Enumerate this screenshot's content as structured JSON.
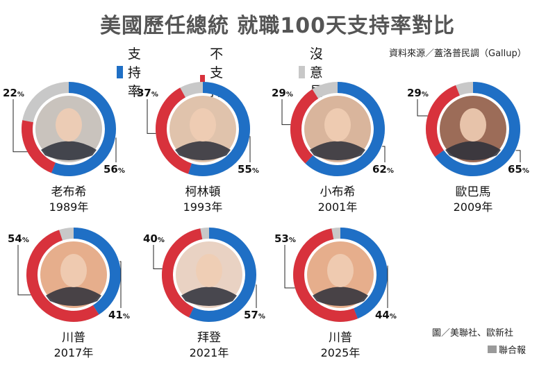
{
  "title": "美國歷任總統 就職100天支持率對比",
  "legend": [
    {
      "label": "支持率",
      "color": "#1f6fc5"
    },
    {
      "label": "不支持率",
      "color": "#d8323c"
    },
    {
      "label": "沒意見",
      "color": "#c8c8c8"
    }
  ],
  "source": "資料來源／蓋洛普民調（Gallup）",
  "credit": "圖／美聯社、歐新社",
  "publisher": "聯合報",
  "percent_sign": "%",
  "chart_data": {
    "type": "pie",
    "donut": true,
    "series_names": [
      "支持率",
      "不支持率",
      "沒意見"
    ],
    "colors": {
      "approve": "#1f6fc5",
      "disapprove": "#d8323c",
      "no_opinion": "#c8c8c8"
    },
    "charts": [
      {
        "name": "老布希",
        "year": "1989年",
        "approve": 56,
        "disapprove": 22,
        "photo_tone": "#c9c3bd"
      },
      {
        "name": "柯林頓",
        "year": "1993年",
        "approve": 55,
        "disapprove": 37,
        "photo_tone": "#e0c3ac"
      },
      {
        "name": "小布希",
        "year": "2001年",
        "approve": 62,
        "disapprove": 29,
        "photo_tone": "#d9b59c"
      },
      {
        "name": "歐巴馬",
        "year": "2009年",
        "approve": 65,
        "disapprove": 29,
        "photo_tone": "#9c6c58"
      },
      {
        "name": "川普",
        "year": "2017年",
        "approve": 41,
        "disapprove": 54,
        "photo_tone": "#e6ae8c"
      },
      {
        "name": "拜登",
        "year": "2021年",
        "approve": 57,
        "disapprove": 40,
        "photo_tone": "#e9d2c3"
      },
      {
        "name": "川普",
        "year": "2025年",
        "approve": 44,
        "disapprove": 53,
        "photo_tone": "#e6ae8c"
      }
    ]
  }
}
